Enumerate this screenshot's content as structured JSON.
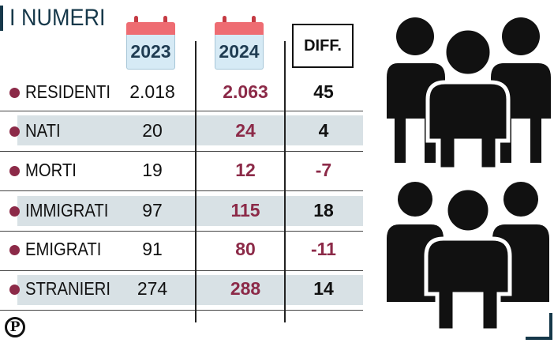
{
  "title": "I NUMERI",
  "columns": {
    "y2023": "2023",
    "y2024": "2024",
    "diff": "DIFF."
  },
  "rows": [
    {
      "label": "RESIDENTI",
      "v2023": "2.018",
      "v2024": "2.063",
      "diff": "45"
    },
    {
      "label": "NATI",
      "v2023": "20",
      "v2024": "24",
      "diff": "4"
    },
    {
      "label": "MORTI",
      "v2023": "19",
      "v2024": "12",
      "diff": "-7"
    },
    {
      "label": "IMMIGRATI",
      "v2023": "97",
      "v2024": "115",
      "diff": "18"
    },
    {
      "label": "EMIGRATI",
      "v2023": "91",
      "v2024": "80",
      "diff": "-11"
    },
    {
      "label": "STRANIERI",
      "v2023": "274",
      "v2024": "288",
      "diff": "14"
    }
  ],
  "logo_letter": "P",
  "colors": {
    "accent": "#8c2a48",
    "title": "#16384a",
    "stripe": "#d8e1e5",
    "calendar_red": "#ee6c72",
    "calendar_page": "#d6eaf5"
  },
  "chart_data": {
    "type": "table",
    "title": "I NUMERI",
    "columns": [
      "2023",
      "2024",
      "DIFF."
    ],
    "categories": [
      "RESIDENTI",
      "NATI",
      "MORTI",
      "IMMIGRATI",
      "EMIGRATI",
      "STRANIERI"
    ],
    "series": [
      {
        "name": "2023",
        "values": [
          2018,
          20,
          19,
          97,
          91,
          274
        ]
      },
      {
        "name": "2024",
        "values": [
          2063,
          24,
          12,
          115,
          80,
          288
        ]
      },
      {
        "name": "DIFF.",
        "values": [
          45,
          4,
          -7,
          18,
          -11,
          14
        ]
      }
    ]
  }
}
